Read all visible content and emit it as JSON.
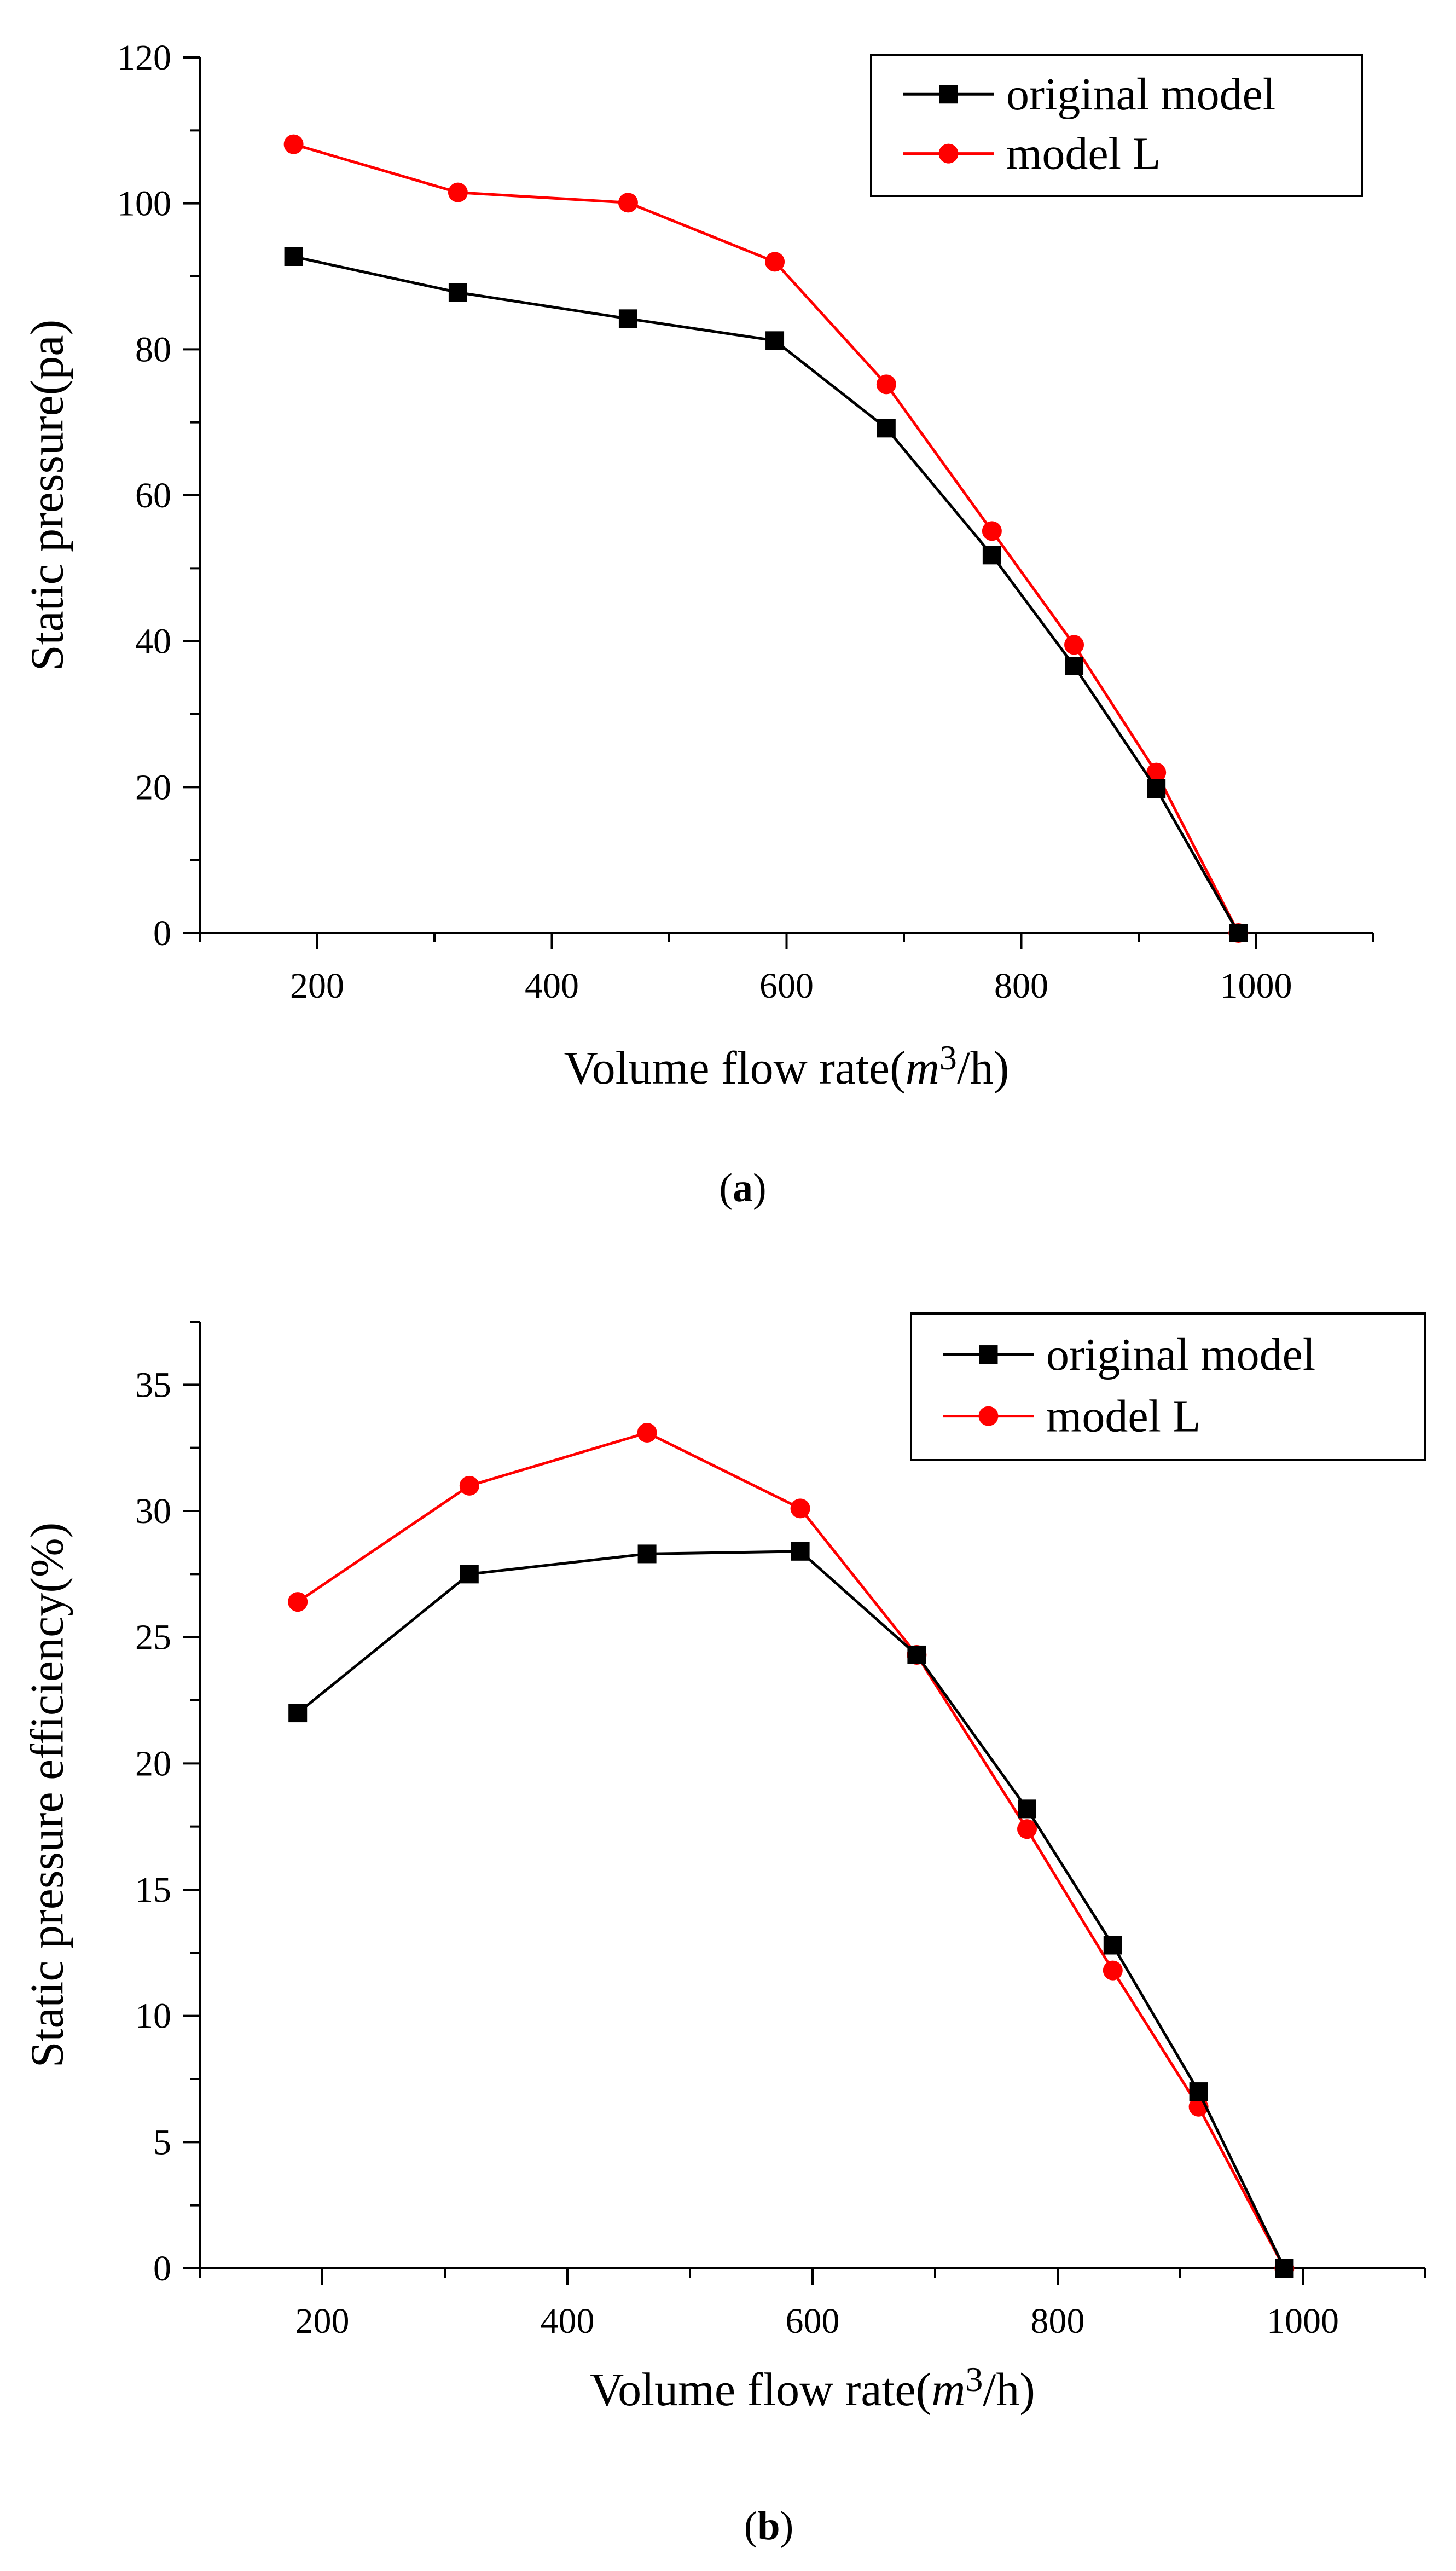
{
  "chart_data": [
    {
      "type": "line",
      "title": "",
      "caption": {
        "open": "(",
        "letter": "a",
        "close": ")"
      },
      "xlabel": {
        "prefix": "Volume flow rate(",
        "unit_italic": "m",
        "unit_sup": "3",
        "suffix": "/h)"
      },
      "ylabel": "Static pressure(pa)",
      "xlim": [
        100,
        1100
      ],
      "ylim": [
        0,
        120
      ],
      "xticks": [
        200,
        400,
        600,
        800,
        1000
      ],
      "yticks": [
        0,
        20,
        40,
        60,
        80,
        100,
        120
      ],
      "legend_position": "top-right",
      "series": [
        {
          "name": "original model",
          "color": "#000000",
          "marker": "square",
          "x": [
            180,
            320,
            465,
            590,
            685,
            775,
            845,
            915,
            985
          ],
          "y": [
            92.7,
            87.8,
            84.2,
            81.2,
            69.2,
            51.8,
            36.6,
            19.8,
            0
          ]
        },
        {
          "name": "model L",
          "color": "#ff0000",
          "marker": "circle",
          "x": [
            180,
            320,
            465,
            590,
            685,
            775,
            845,
            915,
            985
          ],
          "y": [
            108.1,
            101.5,
            100.1,
            92.0,
            75.2,
            55.1,
            39.5,
            22.0,
            0
          ]
        }
      ]
    },
    {
      "type": "line",
      "title": "",
      "caption": {
        "open": "(",
        "letter": "b",
        "close": ")"
      },
      "xlabel": {
        "prefix": "Volume flow rate(",
        "unit_italic": "m",
        "unit_sup": "3",
        "suffix": "/h)"
      },
      "ylabel": "Static pressure efficiency(%)",
      "xlim": [
        100,
        1100
      ],
      "ylim": [
        0,
        37.5
      ],
      "xticks": [
        200,
        400,
        600,
        800,
        1000
      ],
      "yticks": [
        0,
        5,
        10,
        15,
        20,
        25,
        30,
        35
      ],
      "legend_position": "top-right",
      "series": [
        {
          "name": "original model",
          "color": "#000000",
          "marker": "square",
          "x": [
            180,
            320,
            465,
            590,
            685,
            775,
            845,
            915,
            985
          ],
          "y": [
            22.0,
            27.5,
            28.3,
            28.4,
            24.3,
            18.2,
            12.8,
            7.0,
            0
          ]
        },
        {
          "name": "model L",
          "color": "#ff0000",
          "marker": "circle",
          "x": [
            180,
            320,
            465,
            590,
            685,
            775,
            845,
            915,
            985
          ],
          "y": [
            26.4,
            31.0,
            33.1,
            30.1,
            24.3,
            17.4,
            11.8,
            6.4,
            0
          ]
        }
      ]
    }
  ]
}
